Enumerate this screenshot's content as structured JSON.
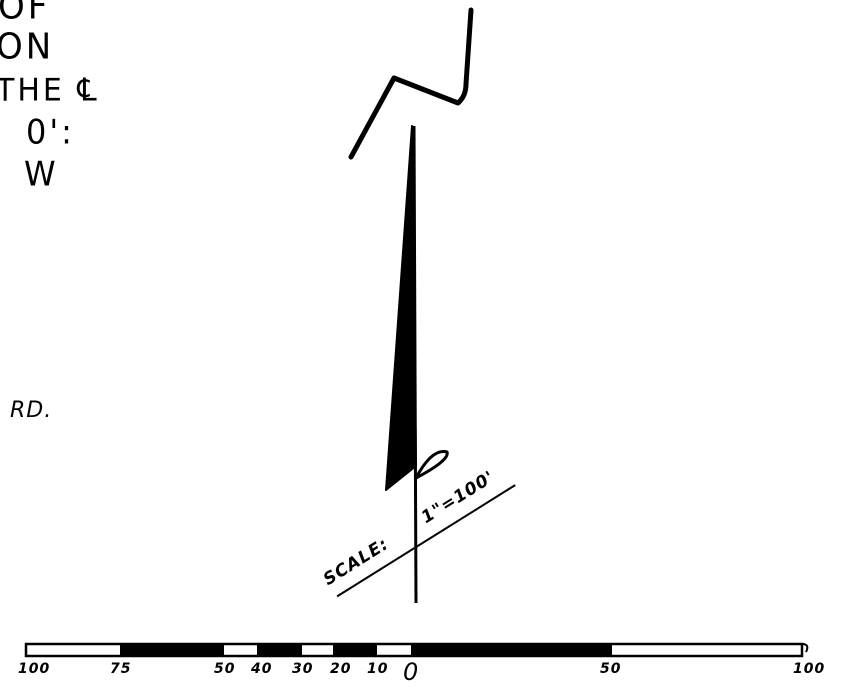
{
  "notes": {
    "lines": [
      "OF",
      "ON",
      "THE ℄",
      "0':",
      "W"
    ]
  },
  "road_label": "RD.",
  "scale_note": {
    "prefix": "SCALE:",
    "value": "1\"=100'"
  },
  "scale_bar": {
    "ticks": [
      "100",
      "75",
      "50",
      "40",
      "30",
      "20",
      "10",
      "0",
      "50",
      "100"
    ]
  },
  "colors": {
    "ink": "#000000",
    "paper": "#ffffff"
  },
  "icons": [
    "north-arrow-icon"
  ]
}
